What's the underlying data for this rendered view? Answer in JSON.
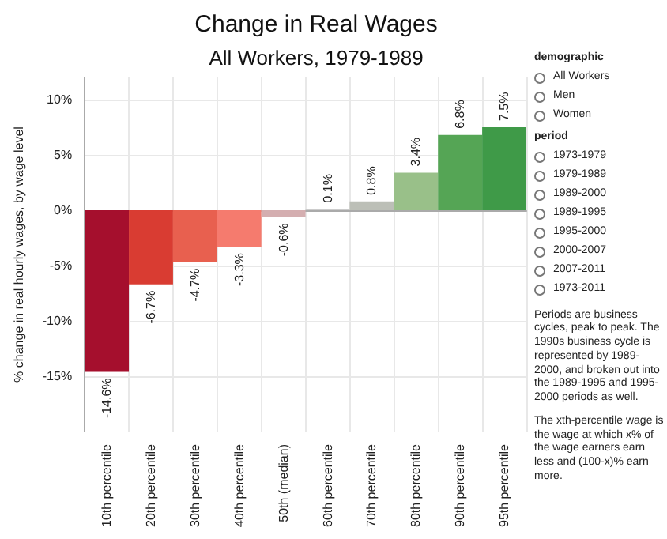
{
  "chart_data": {
    "type": "bar",
    "title": "Change in Real Wages",
    "subtitle": "All Workers, 1979-1989",
    "ylabel": "% change in real hourly wages, by wage level",
    "categories": [
      "10th percentile",
      "20th percentile",
      "30th percentile",
      "40th percentile",
      "50th (median)",
      "60th percentile",
      "70th percentile",
      "80th percentile",
      "90th percentile",
      "95th percentile"
    ],
    "values": [
      -14.6,
      -6.7,
      -4.7,
      -3.3,
      -0.6,
      0.1,
      0.8,
      3.4,
      6.8,
      7.5
    ],
    "colors": [
      "#a50f2d",
      "#d93c32",
      "#e8604f",
      "#f57b6e",
      "#d4aeb0",
      "#cccccc",
      "#bcbfb7",
      "#99c089",
      "#55a555",
      "#3f9a48"
    ],
    "value_labels": [
      "-14.6%",
      "-6.7%",
      "-4.7%",
      "-3.3%",
      "-0.6%",
      "0.1%",
      "0.8%",
      "3.4%",
      "6.8%",
      "7.5%"
    ],
    "ylim": [
      -20,
      12
    ],
    "yticks": [
      {
        "value": -15,
        "label": "-15%"
      },
      {
        "value": -10,
        "label": "-10%"
      },
      {
        "value": -5,
        "label": "-5%"
      },
      {
        "value": 0,
        "label": "0%"
      },
      {
        "value": 5,
        "label": "5%"
      },
      {
        "value": 10,
        "label": "10%"
      }
    ],
    "grid": true,
    "annotations": [
      "demographic",
      "All Workers",
      "Men",
      "Women",
      "period",
      "1973-1979",
      "1979-1989",
      "1989-2000",
      "1989-1995",
      "1995-2000",
      "2000-2007",
      "2007-2011",
      "1973-2011",
      "Periods are business cycles, peak to peak. The 1990s business cycle is represented by 1989-2000, and broken out into the 1989-1995 and 1995-2000 periods as well.",
      "The xth-percentile wage is the wage at which x% of the wage earners earn less and (100-x)% earn more."
    ]
  }
}
